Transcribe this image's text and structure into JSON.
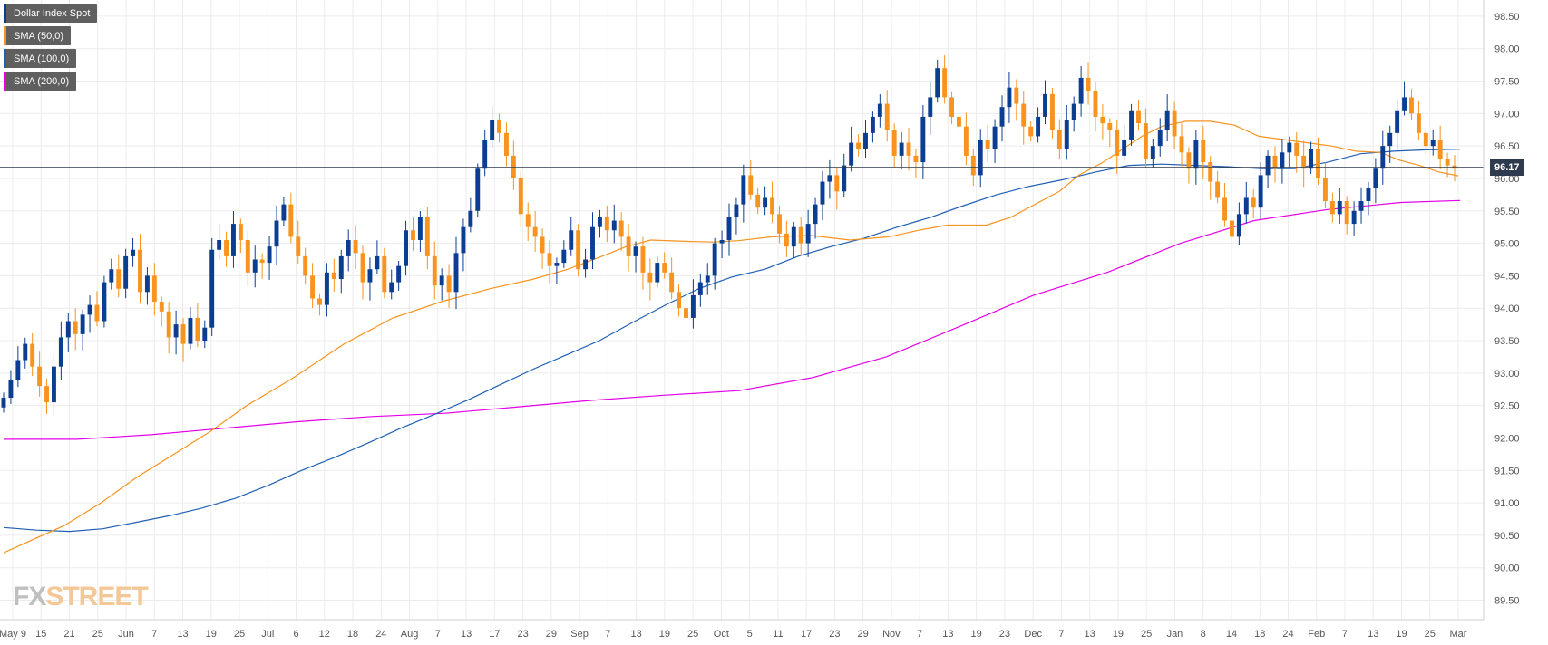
{
  "legend": [
    {
      "label": "Dollar Index Spot",
      "color": "#0b3d91"
    },
    {
      "label": "SMA (50,0)",
      "color": "#f7931e"
    },
    {
      "label": "SMA (100,0)",
      "color": "#1f5fb4"
    },
    {
      "label": "SMA (200,0)",
      "color": "#e400e8"
    }
  ],
  "watermark": {
    "part1": "FX",
    "part2": "STREET"
  },
  "current_price_label": "96.17",
  "colors": {
    "up": "#0b3d91",
    "down": "#f7931e",
    "sma50": "#f7931e",
    "sma100": "#1f5fb4",
    "sma200": "#e400e8",
    "grid": "#ececec",
    "price_line": "#2e3a4d"
  },
  "chart_data": {
    "type": "candlestick",
    "title": "",
    "y_ticks": [
      "98.50",
      "98.00",
      "97.50",
      "97.00",
      "96.50",
      "96.00",
      "95.50",
      "95.00",
      "94.50",
      "94.00",
      "93.50",
      "93.00",
      "92.50",
      "92.00",
      "91.50",
      "91.00",
      "90.50",
      "90.00",
      "89.50"
    ],
    "ylim": [
      89.2,
      98.75
    ],
    "x_tick_labels": [
      "May 9",
      "15",
      "21",
      "25",
      "Jun",
      "7",
      "13",
      "19",
      "25",
      "Jul",
      "6",
      "12",
      "18",
      "24",
      "Aug",
      "7",
      "13",
      "17",
      "23",
      "29",
      "Sep",
      "7",
      "13",
      "19",
      "25",
      "Oct",
      "5",
      "11",
      "17",
      "23",
      "29",
      "Nov",
      "7",
      "13",
      "19",
      "23",
      "Dec",
      "7",
      "13",
      "19",
      "25",
      "Jan",
      "8",
      "14",
      "18",
      "24",
      "Feb",
      "7",
      "13",
      "19",
      "25",
      "Mar"
    ],
    "current_price": 96.17,
    "series": [
      {
        "name": "Dollar Index Spot",
        "type": "candlestick",
        "close": [
          92.62,
          92.9,
          93.2,
          93.45,
          93.1,
          92.8,
          92.55,
          93.1,
          93.55,
          93.8,
          93.6,
          93.9,
          94.05,
          93.8,
          94.4,
          94.6,
          94.3,
          94.8,
          94.9,
          94.25,
          94.5,
          94.1,
          93.95,
          93.55,
          93.75,
          93.45,
          93.85,
          93.5,
          93.7,
          94.9,
          95.05,
          94.8,
          95.3,
          95.05,
          94.55,
          94.75,
          94.7,
          94.95,
          95.35,
          95.6,
          95.1,
          94.8,
          94.5,
          94.15,
          94.05,
          94.55,
          94.45,
          94.8,
          95.05,
          94.85,
          94.4,
          94.6,
          94.8,
          94.25,
          94.4,
          94.65,
          95.2,
          95.05,
          95.4,
          94.8,
          94.35,
          94.5,
          94.25,
          94.85,
          95.25,
          95.5,
          96.15,
          96.6,
          96.9,
          96.7,
          96.35,
          96.0,
          95.45,
          95.25,
          95.1,
          94.85,
          94.65,
          94.7,
          94.9,
          95.2,
          94.6,
          94.75,
          95.25,
          95.4,
          95.2,
          95.35,
          95.1,
          94.8,
          94.95,
          94.55,
          94.4,
          94.7,
          94.55,
          94.25,
          94.0,
          93.85,
          94.2,
          94.4,
          94.5,
          95.0,
          95.05,
          95.4,
          95.6,
          96.05,
          95.75,
          95.55,
          95.7,
          95.45,
          95.15,
          94.95,
          95.25,
          95.0,
          95.3,
          95.6,
          95.95,
          96.05,
          95.8,
          96.2,
          96.55,
          96.45,
          96.7,
          96.95,
          97.15,
          96.75,
          96.35,
          96.55,
          96.35,
          96.25,
          96.95,
          97.25,
          97.7,
          97.25,
          96.95,
          96.8,
          96.35,
          96.05,
          96.6,
          96.45,
          96.8,
          97.1,
          97.4,
          97.15,
          96.8,
          96.65,
          96.95,
          97.3,
          96.75,
          96.45,
          96.9,
          97.15,
          97.55,
          97.35,
          96.95,
          96.85,
          96.75,
          96.35,
          96.6,
          97.05,
          96.85,
          96.3,
          96.5,
          96.75,
          97.05,
          96.65,
          96.4,
          96.15,
          96.6,
          96.25,
          95.95,
          95.7,
          95.35,
          95.1,
          95.45,
          95.7,
          95.55,
          96.05,
          96.35,
          96.15,
          96.4,
          96.55,
          96.35,
          96.15,
          96.45,
          96.0,
          95.65,
          95.45,
          95.65,
          95.3,
          95.5,
          95.65,
          95.85,
          96.15,
          96.5,
          96.7,
          97.05,
          97.25,
          97.0,
          96.7,
          96.5,
          96.6,
          96.3,
          96.2,
          96.15
        ]
      },
      {
        "name": "SMA (50,0)",
        "type": "line",
        "points": [
          [
            0,
            90.23
          ],
          [
            10,
            90.4
          ],
          [
            25,
            90.65
          ],
          [
            40,
            91.0
          ],
          [
            55,
            91.4
          ],
          [
            70,
            91.75
          ],
          [
            85,
            92.1
          ],
          [
            100,
            92.5
          ],
          [
            118,
            92.9
          ],
          [
            140,
            93.45
          ],
          [
            160,
            93.85
          ],
          [
            180,
            94.1
          ],
          [
            200,
            94.3
          ],
          [
            218,
            94.45
          ],
          [
            232,
            94.6
          ],
          [
            246,
            94.8
          ],
          [
            256,
            94.95
          ],
          [
            266,
            95.05
          ],
          [
            280,
            95.03
          ],
          [
            292,
            95.02
          ],
          [
            302,
            95.04
          ],
          [
            316,
            95.1
          ],
          [
            332,
            95.12
          ],
          [
            348,
            95.05
          ],
          [
            364,
            95.1
          ],
          [
            376,
            95.2
          ],
          [
            388,
            95.28
          ],
          [
            404,
            95.28
          ],
          [
            414,
            95.4
          ],
          [
            424,
            95.6
          ],
          [
            434,
            95.8
          ],
          [
            442,
            96.05
          ],
          [
            452,
            96.25
          ],
          [
            460,
            96.45
          ],
          [
            468,
            96.65
          ],
          [
            476,
            96.8
          ],
          [
            486,
            96.88
          ],
          [
            496,
            96.88
          ],
          [
            506,
            96.82
          ],
          [
            516,
            96.65
          ],
          [
            526,
            96.6
          ],
          [
            536,
            96.55
          ],
          [
            546,
            96.5
          ],
          [
            556,
            96.42
          ],
          [
            566,
            96.4
          ],
          [
            574,
            96.28
          ],
          [
            582,
            96.2
          ],
          [
            590,
            96.1
          ],
          [
            598,
            96.04
          ]
        ]
      },
      {
        "name": "SMA (100,0)",
        "type": "line",
        "points": [
          [
            0,
            90.62
          ],
          [
            20,
            90.58
          ],
          [
            40,
            90.56
          ],
          [
            60,
            90.6
          ],
          [
            80,
            90.7
          ],
          [
            100,
            90.8
          ],
          [
            120,
            90.92
          ],
          [
            140,
            91.07
          ],
          [
            160,
            91.27
          ],
          [
            180,
            91.5
          ],
          [
            200,
            91.7
          ],
          [
            220,
            91.92
          ],
          [
            240,
            92.15
          ],
          [
            260,
            92.36
          ],
          [
            280,
            92.58
          ],
          [
            300,
            92.82
          ],
          [
            320,
            93.06
          ],
          [
            340,
            93.28
          ],
          [
            360,
            93.5
          ],
          [
            380,
            93.78
          ],
          [
            400,
            94.05
          ],
          [
            420,
            94.3
          ],
          [
            440,
            94.48
          ],
          [
            460,
            94.6
          ],
          [
            480,
            94.8
          ],
          [
            500,
            94.95
          ],
          [
            520,
            95.08
          ],
          [
            540,
            95.25
          ],
          [
            560,
            95.4
          ],
          [
            580,
            95.58
          ],
          [
            600,
            95.75
          ],
          [
            620,
            95.88
          ],
          [
            640,
            95.98
          ],
          [
            660,
            96.1
          ],
          [
            680,
            96.2
          ],
          [
            700,
            96.22
          ],
          [
            720,
            96.2
          ],
          [
            740,
            96.18
          ],
          [
            760,
            96.15
          ],
          [
            780,
            96.15
          ],
          [
            800,
            96.25
          ],
          [
            820,
            96.38
          ],
          [
            840,
            96.42
          ],
          [
            860,
            96.44
          ],
          [
            880,
            96.45
          ]
        ]
      },
      {
        "name": "SMA (200,0)",
        "type": "line",
        "points": [
          [
            0,
            91.98
          ],
          [
            50,
            91.98
          ],
          [
            100,
            92.05
          ],
          [
            150,
            92.15
          ],
          [
            200,
            92.25
          ],
          [
            250,
            92.33
          ],
          [
            300,
            92.38
          ],
          [
            350,
            92.48
          ],
          [
            400,
            92.58
          ],
          [
            450,
            92.66
          ],
          [
            500,
            92.73
          ],
          [
            550,
            92.93
          ],
          [
            600,
            93.25
          ],
          [
            650,
            93.72
          ],
          [
            700,
            94.2
          ],
          [
            750,
            94.55
          ],
          [
            800,
            95.0
          ],
          [
            850,
            95.35
          ],
          [
            900,
            95.52
          ],
          [
            950,
            95.63
          ],
          [
            990,
            95.66
          ]
        ]
      }
    ]
  }
}
